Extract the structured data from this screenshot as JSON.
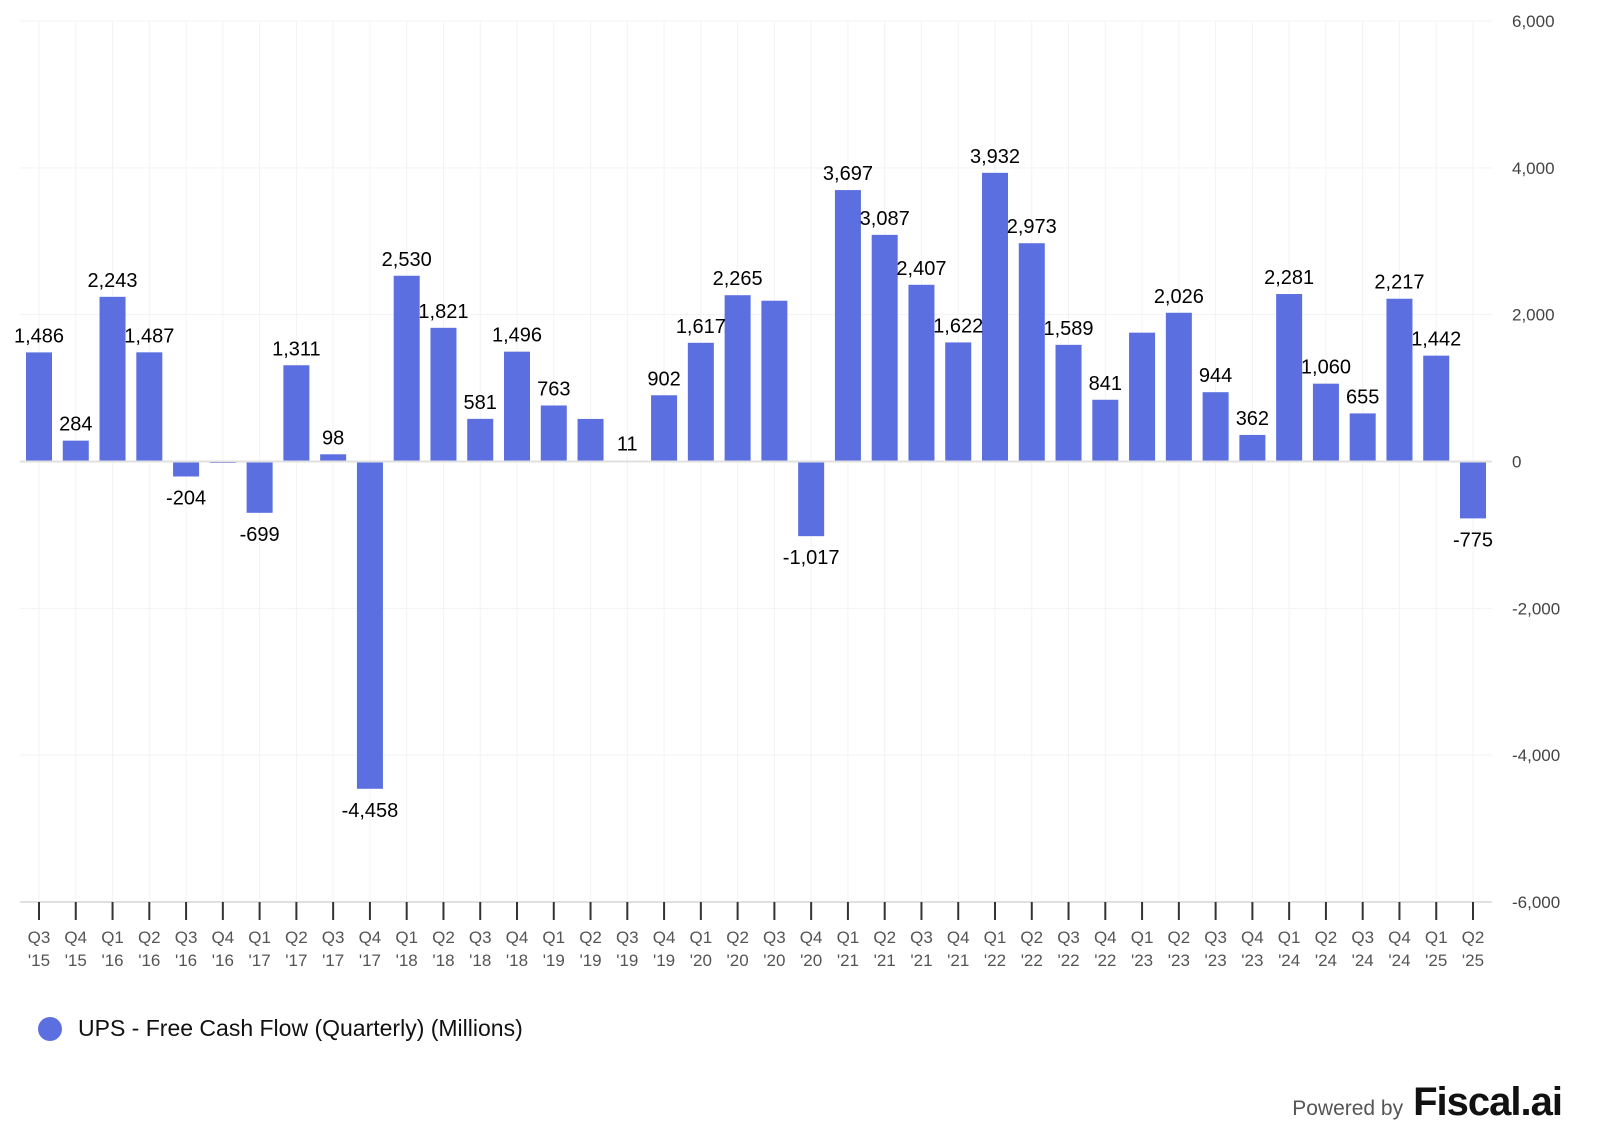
{
  "chart_data": {
    "type": "bar",
    "title": "",
    "xlabel": "",
    "ylabel": "",
    "ylim": [
      -6000,
      6000
    ],
    "yticks": [
      6000,
      4000,
      2000,
      0,
      -2000,
      -4000,
      -6000
    ],
    "ytick_labels": [
      "6,000",
      "4,000",
      "2,000",
      "0",
      "-2,000",
      "-4,000",
      "-6,000"
    ],
    "grid": true,
    "legend_position": "bottom-left",
    "color": "#5b6fe0",
    "categories": [
      [
        "Q3",
        "'15"
      ],
      [
        "Q4",
        "'15"
      ],
      [
        "Q1",
        "'16"
      ],
      [
        "Q2",
        "'16"
      ],
      [
        "Q3",
        "'16"
      ],
      [
        "Q4",
        "'16"
      ],
      [
        "Q1",
        "'17"
      ],
      [
        "Q2",
        "'17"
      ],
      [
        "Q3",
        "'17"
      ],
      [
        "Q4",
        "'17"
      ],
      [
        "Q1",
        "'18"
      ],
      [
        "Q2",
        "'18"
      ],
      [
        "Q3",
        "'18"
      ],
      [
        "Q4",
        "'18"
      ],
      [
        "Q1",
        "'19"
      ],
      [
        "Q2",
        "'19"
      ],
      [
        "Q3",
        "'19"
      ],
      [
        "Q4",
        "'19"
      ],
      [
        "Q1",
        "'20"
      ],
      [
        "Q2",
        "'20"
      ],
      [
        "Q3",
        "'20"
      ],
      [
        "Q4",
        "'20"
      ],
      [
        "Q1",
        "'21"
      ],
      [
        "Q2",
        "'21"
      ],
      [
        "Q3",
        "'21"
      ],
      [
        "Q4",
        "'21"
      ],
      [
        "Q1",
        "'22"
      ],
      [
        "Q2",
        "'22"
      ],
      [
        "Q3",
        "'22"
      ],
      [
        "Q4",
        "'22"
      ],
      [
        "Q1",
        "'23"
      ],
      [
        "Q2",
        "'23"
      ],
      [
        "Q3",
        "'23"
      ],
      [
        "Q4",
        "'23"
      ],
      [
        "Q1",
        "'24"
      ],
      [
        "Q2",
        "'24"
      ],
      [
        "Q3",
        "'24"
      ],
      [
        "Q4",
        "'24"
      ],
      [
        "Q1",
        "'25"
      ],
      [
        "Q2",
        "'25"
      ]
    ],
    "series": [
      {
        "name": "UPS - Free Cash Flow (Quarterly) (Millions)",
        "values": [
          1486,
          284,
          2243,
          1487,
          -204,
          -20,
          -699,
          1311,
          98,
          -4458,
          2530,
          1821,
          581,
          1496,
          763,
          580,
          11,
          902,
          1617,
          2265,
          2190,
          -1017,
          3697,
          3087,
          2407,
          1622,
          3932,
          2973,
          1589,
          841,
          1755,
          2026,
          944,
          362,
          2281,
          1060,
          655,
          2217,
          1442,
          -775
        ],
        "labels": [
          "1,486",
          "284",
          "2,243",
          "1,487",
          "-204",
          "",
          "-699",
          "1,311",
          "98",
          "-4,458",
          "2,530",
          "1,821",
          "581",
          "1,496",
          "763",
          "",
          "11",
          "902",
          "1,617",
          "2,265",
          "",
          "-1,017",
          "3,697",
          "3,087",
          "2,407",
          "1,622",
          "3,932",
          "2,973",
          "1,589",
          "841",
          "",
          "2,026",
          "944",
          "362",
          "2,281",
          "1,060",
          "655",
          "2,217",
          "1,442",
          "-775"
        ]
      }
    ]
  },
  "legend": {
    "label": "UPS - Free Cash Flow (Quarterly) (Millions)",
    "color": "#5b6fe0"
  },
  "footer": {
    "powered_by": "Powered by",
    "brand": "Fiscal.ai"
  }
}
